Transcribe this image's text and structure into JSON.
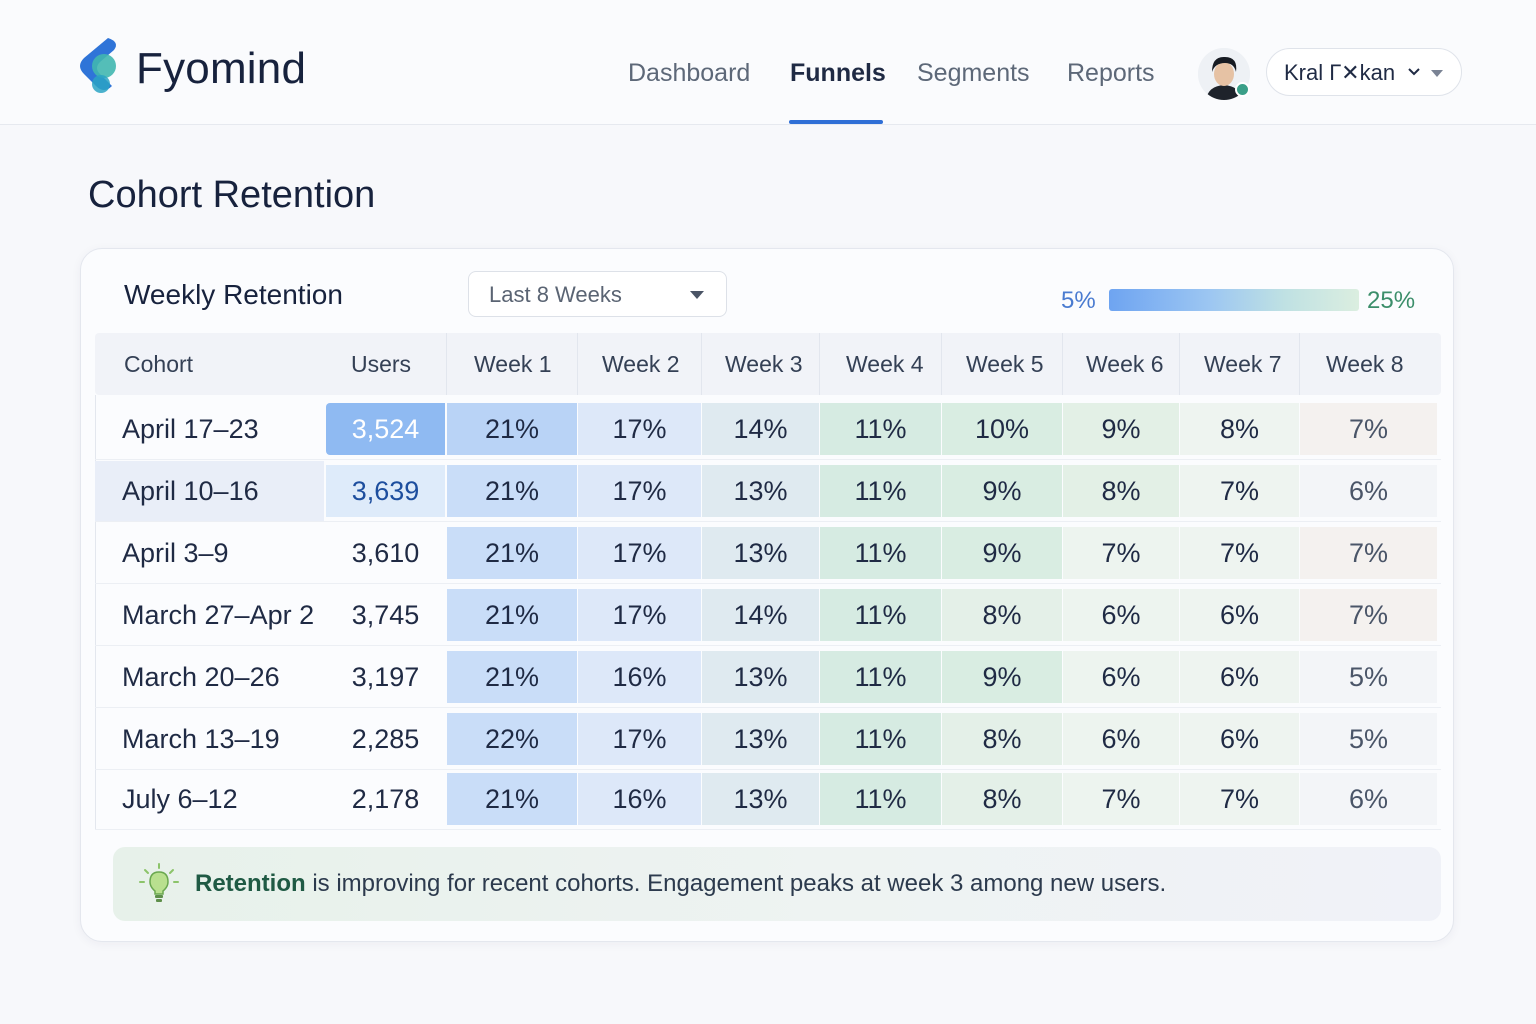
{
  "app": {
    "brand": "Fyomind",
    "nav": [
      "Dashboard",
      "Funnels",
      "Segments",
      "Reports"
    ],
    "active_nav": "Funnels",
    "user_name": "Kral Г✕kan",
    "accent_color": "#2f6fd6"
  },
  "page": {
    "title": "Cohort Retention"
  },
  "card": {
    "title": "Weekly Retention",
    "range_select": "Last 8 Weeks",
    "legend_min": "5%",
    "legend_max": "25%",
    "legend_colors": [
      "#6ea4f1",
      "#dbeee0"
    ]
  },
  "table": {
    "columns": [
      "Cohort",
      "Users",
      "Week 1",
      "Week 2",
      "Week 3",
      "Week 4",
      "Week 5",
      "Week 6",
      "Week 7",
      "Week 8"
    ],
    "rows": [
      {
        "cohort": "April 17–23",
        "users": "3,524",
        "weeks": [
          "21%",
          "17%",
          "14%",
          "11%",
          "10%",
          "9%",
          "8%",
          "7%"
        ]
      },
      {
        "cohort": "April 10–16",
        "users": "3,639",
        "weeks": [
          "21%",
          "17%",
          "13%",
          "11%",
          "9%",
          "8%",
          "7%",
          "6%"
        ]
      },
      {
        "cohort": "April 3–9",
        "users": "3,610",
        "weeks": [
          "21%",
          "17%",
          "13%",
          "11%",
          "9%",
          "7%",
          "7%",
          "7%"
        ]
      },
      {
        "cohort": "March 27–Apr 2",
        "users": "3,745",
        "weeks": [
          "21%",
          "17%",
          "14%",
          "11%",
          "8%",
          "6%",
          "6%",
          "7%"
        ]
      },
      {
        "cohort": "March 20–26",
        "users": "3,197",
        "weeks": [
          "21%",
          "16%",
          "13%",
          "11%",
          "9%",
          "6%",
          "6%",
          "5%"
        ]
      },
      {
        "cohort": "March 13–19",
        "users": "2,285",
        "weeks": [
          "22%",
          "17%",
          "13%",
          "11%",
          "8%",
          "6%",
          "6%",
          "5%"
        ]
      },
      {
        "cohort": "July 6–12",
        "users": "2,178",
        "weeks": [
          "21%",
          "16%",
          "13%",
          "11%",
          "8%",
          "7%",
          "7%",
          "6%"
        ]
      }
    ]
  },
  "insight": {
    "icon": "lightbulb-icon",
    "lead": "Retention",
    "text": " is improving for recent cohorts. Engagement peaks at week 3 among new users."
  }
}
